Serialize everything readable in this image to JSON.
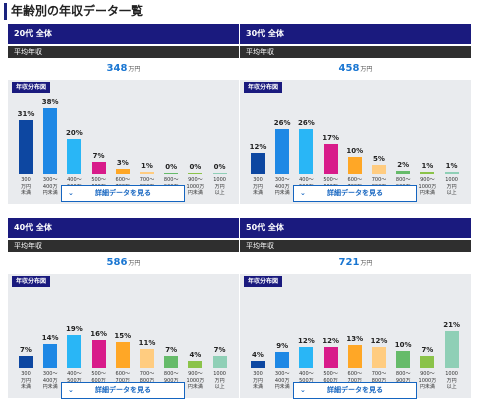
{
  "page_title": "年齢別の年収データ一覧",
  "colors": {
    "header_bg": "#1a1a7e",
    "label_bg": "#2f2f2f",
    "income_text": "#1976d2",
    "chart_bg": "#e9ebee",
    "bars": [
      "#0d47a1",
      "#1e88e5",
      "#29b6f6",
      "#d81b8a",
      "#ffa726",
      "#ffcc80",
      "#66bb6a",
      "#8bc34a",
      "#8fcfb6"
    ]
  },
  "categories": [
    "300\n万円\n未満",
    "300〜\n400万\n円未満",
    "400〜\n500万\n円未満",
    "500〜\n600万\n円未満",
    "600〜\n700万\n円未満",
    "700〜\n800万\n円未満",
    "800〜\n900万\n円未満",
    "900〜\n1000万\n円未満",
    "1000\n万円\n以上"
  ],
  "panels": [
    {
      "header": "20代 全体",
      "income_label": "平均年収",
      "income_value": "348",
      "income_unit": "万円",
      "dist_label": "年収分布図",
      "values": [
        31,
        38,
        20,
        7,
        3,
        1,
        0,
        0,
        0
      ],
      "value_labels": [
        "31%",
        "38%",
        "20%",
        "7%",
        "3%",
        "1%",
        "0%",
        "0%",
        "0%"
      ],
      "button_label": "詳細データを見る",
      "button_icon": "chevron-down-icon"
    },
    {
      "header": "30代 全体",
      "income_label": "平均年収",
      "income_value": "458",
      "income_unit": "万円",
      "dist_label": "年収分布図",
      "values": [
        12,
        26,
        26,
        17,
        10,
        5,
        2,
        1,
        1
      ],
      "value_labels": [
        "12%",
        "26%",
        "26%",
        "17%",
        "10%",
        "5%",
        "2%",
        "1%",
        "1%"
      ],
      "button_label": "詳細データを見る",
      "button_icon": "chevron-down-icon"
    },
    {
      "header": "40代 全体",
      "income_label": "平均年収",
      "income_value": "586",
      "income_unit": "万円",
      "dist_label": "年収分布図",
      "values": [
        7,
        14,
        19,
        16,
        15,
        11,
        7,
        4,
        7
      ],
      "value_labels": [
        "7%",
        "14%",
        "19%",
        "16%",
        "15%",
        "11%",
        "7%",
        "4%",
        "7%"
      ],
      "button_label": "詳細データを見る",
      "button_icon": "chevron-down-icon"
    },
    {
      "header": "50代 全体",
      "income_label": "平均年収",
      "income_value": "721",
      "income_unit": "万円",
      "dist_label": "年収分布図",
      "values": [
        4,
        9,
        12,
        12,
        13,
        12,
        10,
        7,
        21
      ],
      "value_labels": [
        "4%",
        "9%",
        "12%",
        "12%",
        "13%",
        "12%",
        "10%",
        "7%",
        "21%"
      ],
      "button_label": "詳細データを見る",
      "button_icon": "chevron-down-icon"
    }
  ],
  "chart_data": [
    {
      "type": "bar",
      "title": "20代 全体",
      "categories": [
        "300万円未満",
        "300〜400万円未満",
        "400〜500万円未満",
        "500〜600万円未満",
        "600〜700万円未満",
        "700〜800万円未満",
        "800〜900万円未満",
        "900〜1000万円未満",
        "1000万円以上"
      ],
      "values": [
        31,
        38,
        20,
        7,
        3,
        1,
        0,
        0,
        0
      ],
      "ylim": [
        0,
        40
      ]
    },
    {
      "type": "bar",
      "title": "30代 全体",
      "categories": [
        "300万円未満",
        "300〜400万円未満",
        "400〜500万円未満",
        "500〜600万円未満",
        "600〜700万円未満",
        "700〜800万円未満",
        "800〜900万円未満",
        "900〜1000万円未満",
        "1000万円以上"
      ],
      "values": [
        12,
        26,
        26,
        17,
        10,
        5,
        2,
        1,
        1
      ],
      "ylim": [
        0,
        40
      ]
    },
    {
      "type": "bar",
      "title": "40代 全体",
      "categories": [
        "300万円未満",
        "300〜400万円未満",
        "400〜500万円未満",
        "500〜600万円未満",
        "600〜700万円未満",
        "700〜800万円未満",
        "800〜900万円未満",
        "900〜1000万円未満",
        "1000万円以上"
      ],
      "values": [
        7,
        14,
        19,
        16,
        15,
        11,
        7,
        4,
        7
      ],
      "ylim": [
        0,
        40
      ]
    },
    {
      "type": "bar",
      "title": "50代 全体",
      "categories": [
        "300万円未満",
        "300〜400万円未満",
        "400〜500万円未満",
        "500〜600万円未満",
        "600〜700万円未満",
        "700〜800万円未満",
        "800〜900万円未満",
        "900〜1000万円未満",
        "1000万円以上"
      ],
      "values": [
        4,
        9,
        12,
        12,
        13,
        12,
        10,
        7,
        21
      ],
      "ylim": [
        0,
        40
      ]
    }
  ]
}
